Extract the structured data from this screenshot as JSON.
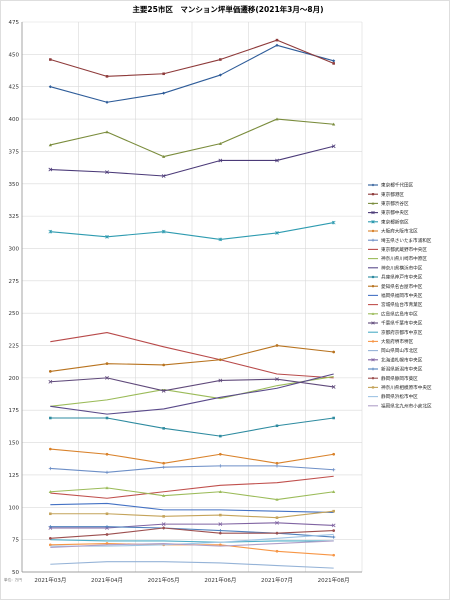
{
  "chart_data": {
    "type": "line",
    "title": "主要25市区　マンション坪単価遷移(2021年3月～8月)",
    "note": "単位：万円",
    "xlabel": "",
    "ylabel": "",
    "ylim": [
      50,
      475
    ],
    "ytick_step": 25,
    "grid": true,
    "legend_position": "right",
    "categories": [
      "2021年03月",
      "2021年04月",
      "2021年05月",
      "2021年06月",
      "2021年07月",
      "2021年08月"
    ],
    "series": [
      {
        "name": "東京都千代田区",
        "color": "#2e5c99",
        "marker": "diamond",
        "values": [
          425,
          413,
          420,
          434,
          457,
          445
        ]
      },
      {
        "name": "東京都港区",
        "color": "#8e3a3a",
        "marker": "square",
        "values": [
          446,
          433,
          435,
          446,
          461,
          443
        ]
      },
      {
        "name": "東京都渋谷区",
        "color": "#7a8c3c",
        "marker": "triangle",
        "values": [
          380,
          390,
          371,
          381,
          400,
          396
        ]
      },
      {
        "name": "東京都中央区",
        "color": "#4b3a78",
        "marker": "x",
        "values": [
          361,
          359,
          356,
          368,
          368,
          379
        ]
      },
      {
        "name": "東京都新宿区",
        "color": "#2e9bb0",
        "marker": "star",
        "values": [
          313,
          309,
          313,
          307,
          312,
          320
        ]
      },
      {
        "name": "大阪府大阪市北区",
        "color": "#d9822b",
        "marker": "circle",
        "values": [
          145,
          141,
          134,
          141,
          134,
          141
        ]
      },
      {
        "name": "埼玉県さいたま市浦和区",
        "color": "#6d8fc7",
        "marker": "plus",
        "values": [
          130,
          127,
          131,
          132,
          132,
          129
        ]
      },
      {
        "name": "東京都武蔵野市中央区",
        "color": "#b84a4a",
        "marker": "line",
        "values": [
          228,
          235,
          224,
          214,
          203,
          200
        ]
      },
      {
        "name": "神奈川県川崎市中原区",
        "color": "#9bbb59",
        "marker": "line",
        "values": [
          178,
          183,
          191,
          184,
          194,
          201
        ]
      },
      {
        "name": "神奈川県横浜市中区",
        "color": "#5a4a8a",
        "marker": "line",
        "values": [
          178,
          172,
          176,
          185,
          192,
          203
        ]
      },
      {
        "name": "兵庫県神戸市中央区",
        "color": "#2e8ba0",
        "marker": "square",
        "values": [
          169,
          169,
          161,
          155,
          163,
          169
        ]
      },
      {
        "name": "愛知県名古屋市中区",
        "color": "#b8731f",
        "marker": "circle",
        "values": [
          205,
          211,
          210,
          214,
          225,
          220
        ]
      },
      {
        "name": "福岡県福岡市中央区",
        "color": "#4472c4",
        "marker": "line",
        "values": [
          102,
          103,
          98,
          98,
          97,
          96
        ]
      },
      {
        "name": "宮城県仙台市青葉区",
        "color": "#c0504d",
        "marker": "line",
        "values": [
          111,
          107,
          112,
          117,
          119,
          124
        ]
      },
      {
        "name": "広島県広島市中区",
        "color": "#9bbb59",
        "marker": "triangle",
        "values": [
          112,
          115,
          109,
          112,
          106,
          112
        ]
      },
      {
        "name": "千葉県千葉市中央区",
        "color": "#604a7b",
        "marker": "x",
        "values": [
          197,
          200,
          190,
          198,
          199,
          193
        ]
      },
      {
        "name": "京都府京都市中京区",
        "color": "#4bacc6",
        "marker": "line",
        "values": [
          75,
          74,
          74,
          73,
          74,
          74
        ]
      },
      {
        "name": "大阪府堺市堺区",
        "color": "#f79646",
        "marker": "circle",
        "values": [
          71,
          72,
          71,
          71,
          66,
          63
        ]
      },
      {
        "name": "岡山県岡山市北区",
        "color": "#95b3d7",
        "marker": "line",
        "values": [
          56,
          58,
          58,
          57,
          55,
          53
        ]
      },
      {
        "name": "北海道札幌市中央区",
        "color": "#8064a2",
        "marker": "x",
        "values": [
          84,
          84,
          87,
          87,
          88,
          86
        ]
      },
      {
        "name": "新潟県新潟市中央区",
        "color": "#4f81bd",
        "marker": "plus",
        "values": [
          85,
          85,
          84,
          82,
          80,
          77
        ]
      },
      {
        "name": "静岡県静岡市葵区",
        "color": "#9c4f4f",
        "marker": "circle",
        "values": [
          76,
          79,
          84,
          80,
          80,
          82
        ]
      },
      {
        "name": "神奈川県相模原市中央区",
        "color": "#c4a35a",
        "marker": "square",
        "values": [
          95,
          95,
          93,
          94,
          92,
          97
        ]
      },
      {
        "name": "静岡県浜松市中区",
        "color": "#a0c4e4",
        "marker": "line",
        "values": [
          70,
          70,
          71,
          73,
          76,
          79
        ]
      },
      {
        "name": "福岡県北九州市小倉北区",
        "color": "#b0a0c8",
        "marker": "line",
        "values": [
          69,
          71,
          72,
          70,
          72,
          74
        ]
      }
    ]
  }
}
